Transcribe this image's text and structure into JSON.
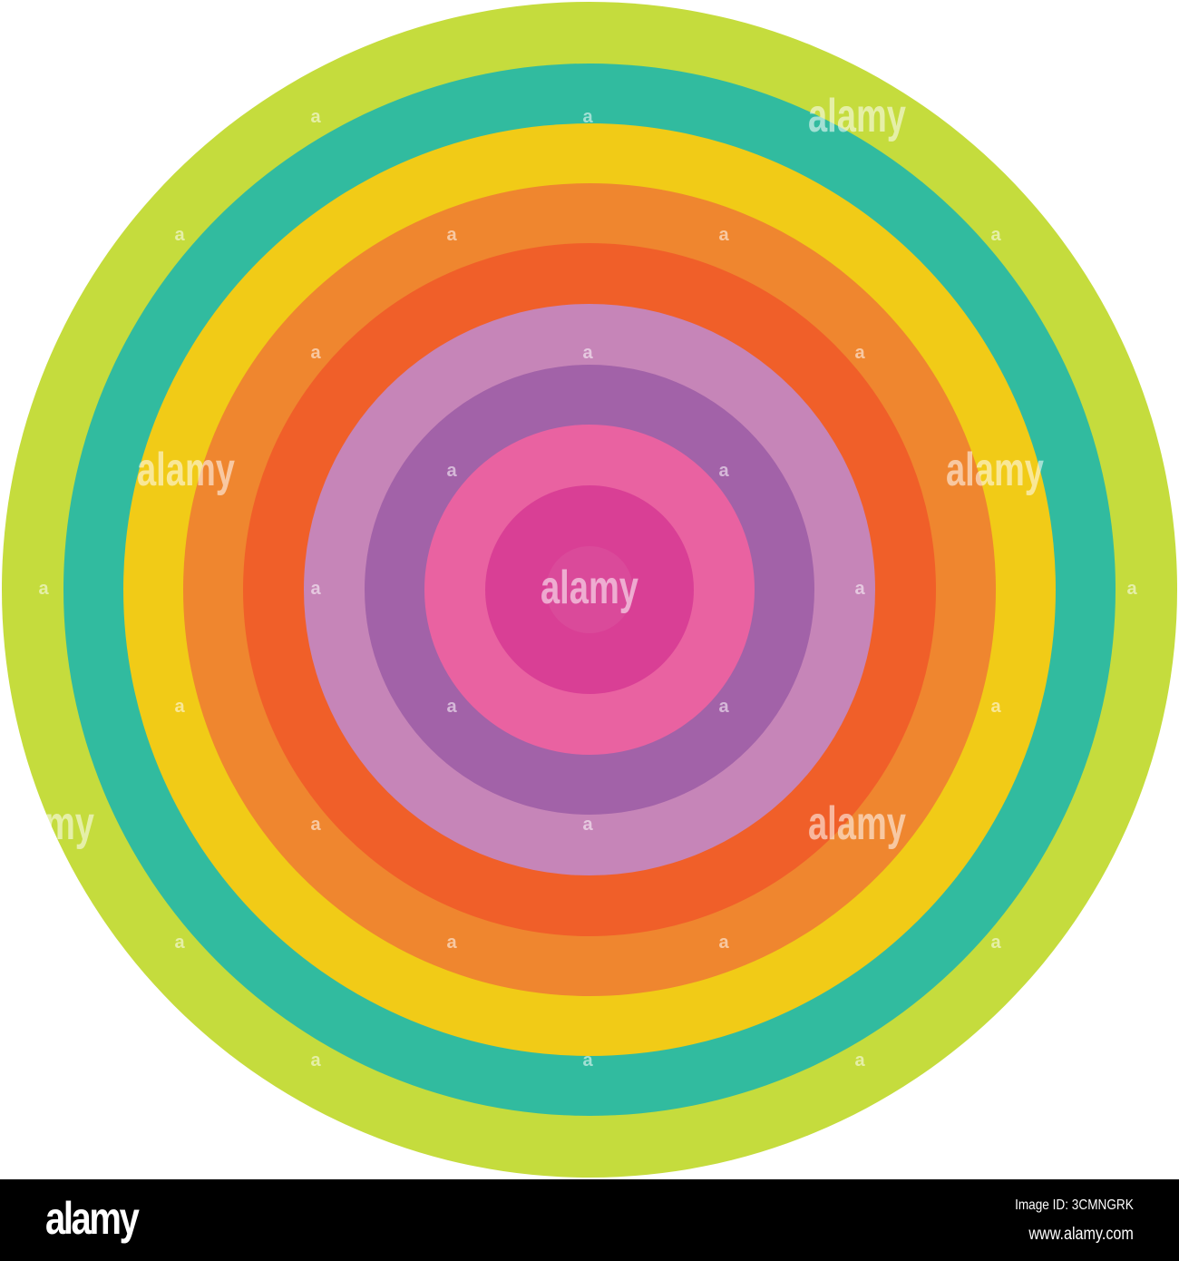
{
  "rings": [
    {
      "color": "#c5dc3d"
    },
    {
      "color": "#31bb9f"
    },
    {
      "color": "#f1cb17"
    },
    {
      "color": "#ef862f"
    },
    {
      "color": "#f05f29"
    },
    {
      "color": "#c685b8"
    },
    {
      "color": "#a262a8"
    },
    {
      "color": "#e962a1"
    },
    {
      "color": "#d93f95"
    },
    {
      "color": "#da4a9a"
    }
  ],
  "watermark": "alamy",
  "watermark_small": "a",
  "footer": {
    "logo": "alamy",
    "image_id": "Image ID: 3CMNGRK",
    "website": "www.alamy.com"
  }
}
